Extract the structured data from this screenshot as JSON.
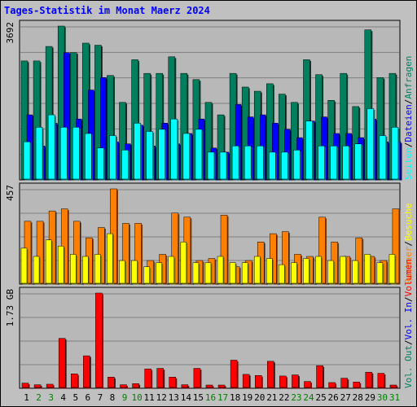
{
  "title": "Tages-Statistik im Monat Maerz 2024",
  "colors": {
    "background": "#c0c0c0",
    "plot_background": "#b8b8b8",
    "grid": "#7f7f7f",
    "border": "#000000",
    "anfragen": "#007f5f",
    "dateien": "#0000ff",
    "seiten": "#00ffff",
    "besuche": "#ffff00",
    "rechner": "#ff8000",
    "volumen": "#ff0000",
    "title": "#0000ff",
    "weekday_label": "#000000",
    "weekend_label": "#007f00"
  },
  "chart_data": [
    {
      "type": "bar",
      "panel": "top",
      "ymax_label": "3692",
      "ylim": [
        0,
        3692
      ],
      "categories": [
        "1",
        "2",
        "3",
        "4",
        "5",
        "6",
        "7",
        "8",
        "9",
        "10",
        "11",
        "12",
        "13",
        "14",
        "15",
        "16",
        "17",
        "18",
        "19",
        "20",
        "21",
        "22",
        "23",
        "24",
        "25",
        "26",
        "27",
        "28",
        "29",
        "30",
        "31"
      ],
      "weekend_days": [
        "2",
        "3",
        "9",
        "10",
        "16",
        "17",
        "23",
        "24",
        "30",
        "31"
      ],
      "legend_right": [
        "Anfragen",
        "Dateien",
        "Seiten"
      ],
      "series": [
        {
          "name": "Anfragen",
          "color": "#007f5f",
          "values": [
            2850,
            2850,
            3200,
            3692,
            3050,
            3280,
            3230,
            2500,
            1850,
            2880,
            2550,
            2550,
            2950,
            2550,
            2400,
            1850,
            1550,
            2550,
            2220,
            2120,
            2300,
            2050,
            1850,
            2880,
            2520,
            1900,
            2550,
            1750,
            3600,
            2450,
            2550
          ]
        },
        {
          "name": "Dateien",
          "color": "#0000ff",
          "values": [
            1550,
            800,
            1350,
            3050,
            1450,
            2150,
            2450,
            900,
            850,
            1300,
            800,
            1350,
            850,
            1100,
            1450,
            750,
            650,
            1800,
            1500,
            1550,
            1350,
            1200,
            1000,
            1400,
            1500,
            1100,
            1100,
            1000,
            1450,
            900,
            900
          ]
        },
        {
          "name": "Seiten",
          "color": "#00ffff",
          "values": [
            900,
            1250,
            1550,
            1250,
            1250,
            1100,
            750,
            1050,
            700,
            1350,
            1150,
            1200,
            1450,
            1100,
            1200,
            650,
            650,
            800,
            800,
            800,
            650,
            650,
            700,
            1400,
            800,
            800,
            800,
            850,
            1700,
            1050,
            1250
          ]
        }
      ]
    },
    {
      "type": "bar",
      "panel": "middle",
      "ymax_label": "457",
      "ylim": [
        0,
        457
      ],
      "legend_right": [
        "Besuche",
        "Rechner"
      ],
      "series": [
        {
          "name": "Besuche",
          "color": "#ffff00",
          "values": [
            170,
            130,
            210,
            180,
            140,
            130,
            140,
            240,
            110,
            110,
            80,
            100,
            130,
            200,
            100,
            100,
            130,
            100,
            100,
            130,
            120,
            90,
            100,
            120,
            130,
            110,
            130,
            110,
            140,
            100,
            140
          ]
        },
        {
          "name": "Rechner",
          "color": "#ff8000",
          "values": [
            300,
            300,
            350,
            360,
            300,
            220,
            270,
            457,
            290,
            290,
            110,
            140,
            340,
            320,
            110,
            120,
            330,
            80,
            110,
            200,
            240,
            250,
            140,
            130,
            320,
            200,
            130,
            220,
            130,
            110,
            360
          ]
        }
      ]
    },
    {
      "type": "bar",
      "panel": "bottom",
      "ymax_label": "1.73 GB",
      "ylim": [
        0,
        1.73
      ],
      "legend_right": [
        "Volumen",
        "Vol. In",
        "Vol. Out"
      ],
      "series": [
        {
          "name": "Volumen",
          "color": "#ff0000",
          "values": [
            0.08,
            0.05,
            0.06,
            0.9,
            0.25,
            0.58,
            1.73,
            0.19,
            0.05,
            0.07,
            0.34,
            0.35,
            0.19,
            0.05,
            0.35,
            0.04,
            0.04,
            0.5,
            0.24,
            0.22,
            0.48,
            0.21,
            0.23,
            0.11,
            0.4,
            0.09,
            0.17,
            0.1,
            0.28,
            0.26,
            0.04
          ]
        }
      ]
    }
  ]
}
